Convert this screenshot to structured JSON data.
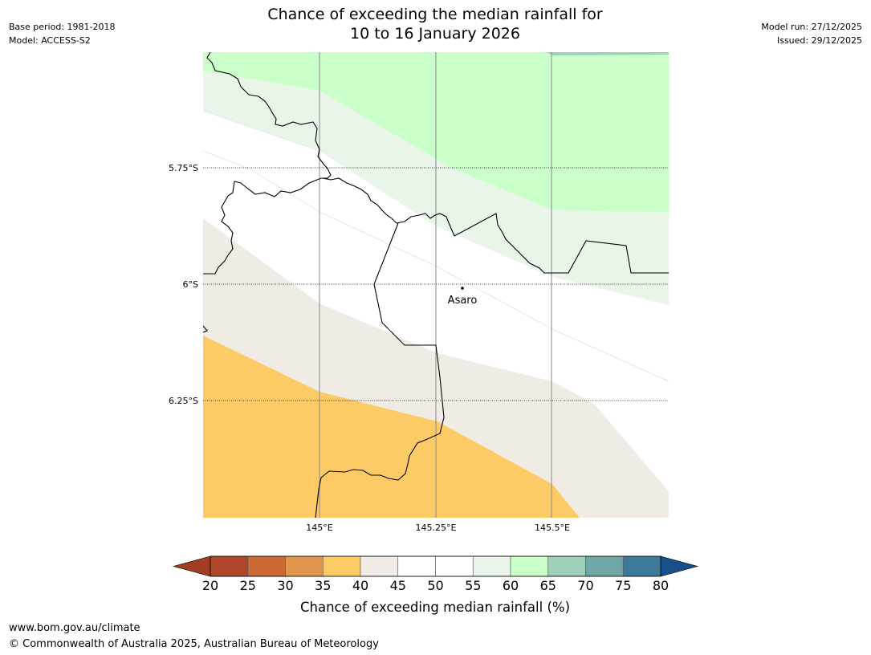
{
  "header": {
    "base_period": "Base period: 1981-2018",
    "model": "Model: ACCESS-S2",
    "model_run": "Model run: 27/12/2025",
    "issued": "Issued: 29/12/2025",
    "title_line1": "Chance of exceeding the median rainfall for",
    "title_line2": "10 to 16 January 2026"
  },
  "map": {
    "latitude_labels": [
      "5.75°S",
      "6°S",
      "6.25°S"
    ],
    "longitude_labels": [
      "145°E",
      "145.25°E",
      "145.5°E"
    ],
    "place": {
      "name": "Asaro"
    }
  },
  "colorbar": {
    "title": "Chance of exceeding median rainfall (%)",
    "ticks": [
      "20",
      "25",
      "30",
      "35",
      "40",
      "45",
      "50",
      "55",
      "60",
      "65",
      "70",
      "75",
      "80"
    ],
    "colors": [
      "#a23c22",
      "#b0472a",
      "#cc6a35",
      "#e0954a",
      "#fdcb65",
      "#f0ebe4",
      "#ffffff",
      "#ffffff",
      "#e9f5e8",
      "#caffca",
      "#9ecfb8",
      "#6fa6a6",
      "#3d7a9a",
      "#174f8a"
    ]
  },
  "footer": {
    "url": "www.bom.gov.au/climate",
    "copyright": "© Commonwealth of Australia 2025, Australian Bureau of Meteorology"
  }
}
